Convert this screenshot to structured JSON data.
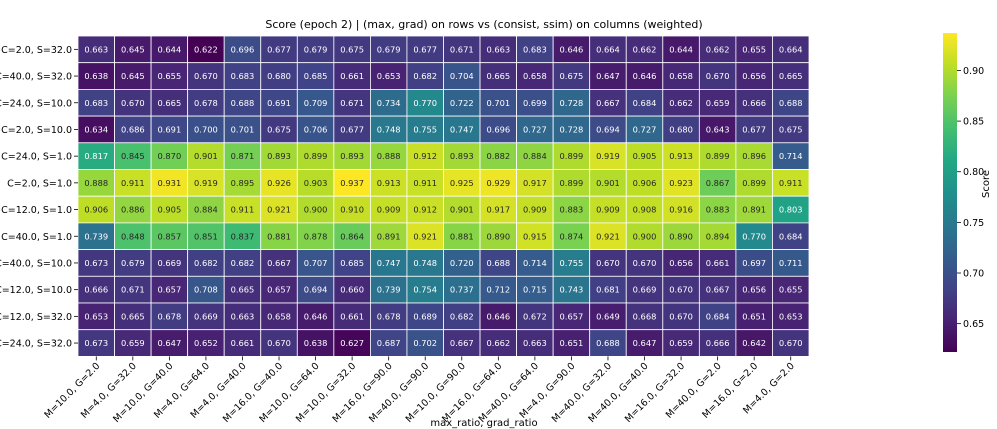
{
  "chart_data": {
    "type": "heatmap",
    "title": "Score (epoch 2) | (max, grad) on rows vs (consist, ssim) on columns (weighted)",
    "xlabel": "max_ratio, grad_ratio",
    "ylabel": "",
    "colorbar_label": "Score",
    "colormap": "viridis",
    "color_range": [
      0.622,
      0.937
    ],
    "colorbar_ticks": [
      0.65,
      0.7,
      0.75,
      0.8,
      0.85,
      0.9
    ],
    "colorbar_tick_labels": [
      "0.65",
      "0.70",
      "0.75",
      "0.80",
      "0.85",
      "0.90"
    ],
    "x_categories": [
      "M=10.0, G=2.0",
      "M=4.0, G=32.0",
      "M=10.0, G=40.0",
      "M=4.0, G=64.0",
      "M=4.0, G=40.0",
      "M=16.0, G=40.0",
      "M=10.0, G=64.0",
      "M=10.0, G=32.0",
      "M=16.0, G=90.0",
      "M=40.0, G=90.0",
      "M=10.0, G=90.0",
      "M=16.0, G=64.0",
      "M=40.0, G=64.0",
      "M=4.0, G=90.0",
      "M=40.0, G=32.0",
      "M=40.0, G=40.0",
      "M=16.0, G=32.0",
      "M=40.0, G=2.0",
      "M=16.0, G=2.0",
      "M=4.0, G=2.0"
    ],
    "y_categories": [
      "C=2.0, S=32.0",
      "C=40.0, S=32.0",
      "C=24.0, S=10.0",
      "C=2.0, S=10.0",
      "C=24.0, S=1.0",
      "C=2.0, S=1.0",
      "C=12.0, S=1.0",
      "C=40.0, S=1.0",
      "C=40.0, S=10.0",
      "C=12.0, S=10.0",
      "C=12.0, S=32.0",
      "C=24.0, S=32.0"
    ],
    "values": [
      [
        0.663,
        0.645,
        0.644,
        0.622,
        0.696,
        0.677,
        0.679,
        0.675,
        0.679,
        0.677,
        0.671,
        0.663,
        0.683,
        0.646,
        0.664,
        0.662,
        0.644,
        0.662,
        0.655,
        0.664
      ],
      [
        0.638,
        0.645,
        0.655,
        0.67,
        0.683,
        0.68,
        0.685,
        0.661,
        0.653,
        0.682,
        0.704,
        0.665,
        0.658,
        0.675,
        0.647,
        0.646,
        0.658,
        0.67,
        0.656,
        0.665
      ],
      [
        0.683,
        0.67,
        0.665,
        0.678,
        0.688,
        0.691,
        0.709,
        0.671,
        0.734,
        0.77,
        0.722,
        0.701,
        0.699,
        0.728,
        0.667,
        0.684,
        0.662,
        0.659,
        0.666,
        0.688
      ],
      [
        0.634,
        0.686,
        0.691,
        0.7,
        0.701,
        0.675,
        0.706,
        0.677,
        0.748,
        0.755,
        0.747,
        0.696,
        0.727,
        0.728,
        0.694,
        0.727,
        0.68,
        0.643,
        0.677,
        0.675
      ],
      [
        0.817,
        0.845,
        0.87,
        0.901,
        0.871,
        0.893,
        0.899,
        0.893,
        0.888,
        0.912,
        0.893,
        0.882,
        0.884,
        0.899,
        0.919,
        0.905,
        0.913,
        0.899,
        0.896,
        0.714
      ],
      [
        0.888,
        0.911,
        0.931,
        0.919,
        0.895,
        0.926,
        0.903,
        0.937,
        0.913,
        0.911,
        0.925,
        0.929,
        0.917,
        0.899,
        0.901,
        0.906,
        0.923,
        0.867,
        0.899,
        0.911
      ],
      [
        0.906,
        0.886,
        0.905,
        0.884,
        0.911,
        0.921,
        0.9,
        0.91,
        0.909,
        0.912,
        0.901,
        0.917,
        0.909,
        0.883,
        0.909,
        0.908,
        0.916,
        0.883,
        0.891,
        0.803
      ],
      [
        0.739,
        0.848,
        0.857,
        0.851,
        0.837,
        0.881,
        0.878,
        0.864,
        0.891,
        0.921,
        0.881,
        0.89,
        0.915,
        0.874,
        0.921,
        0.9,
        0.89,
        0.894,
        0.77,
        0.684
      ],
      [
        0.673,
        0.679,
        0.669,
        0.682,
        0.682,
        0.667,
        0.707,
        0.685,
        0.747,
        0.748,
        0.72,
        0.688,
        0.714,
        0.755,
        0.67,
        0.67,
        0.656,
        0.661,
        0.697,
        0.711
      ],
      [
        0.666,
        0.671,
        0.657,
        0.708,
        0.665,
        0.657,
        0.694,
        0.66,
        0.739,
        0.754,
        0.737,
        0.712,
        0.715,
        0.743,
        0.681,
        0.669,
        0.67,
        0.667,
        0.656,
        0.655
      ],
      [
        0.653,
        0.665,
        0.678,
        0.669,
        0.663,
        0.658,
        0.646,
        0.661,
        0.678,
        0.689,
        0.682,
        0.646,
        0.672,
        0.657,
        0.649,
        0.668,
        0.67,
        0.684,
        0.651,
        0.653
      ],
      [
        0.673,
        0.659,
        0.647,
        0.652,
        0.661,
        0.67,
        0.638,
        0.627,
        0.687,
        0.702,
        0.667,
        0.662,
        0.663,
        0.651,
        0.688,
        0.647,
        0.659,
        0.666,
        0.642,
        0.67
      ]
    ]
  }
}
